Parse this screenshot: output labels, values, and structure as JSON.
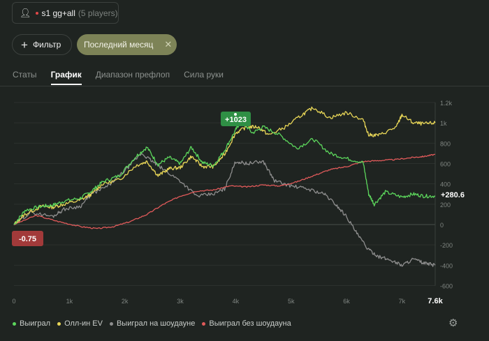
{
  "player_filter": {
    "name": "s1 gg+all",
    "count": "(5 players)",
    "icon": "person-settings-icon"
  },
  "toolbar": {
    "filter_label": "Фильтр",
    "period_label": "Последний месяц"
  },
  "tabs": [
    {
      "label": "Статы",
      "active": false
    },
    {
      "label": "График",
      "active": true
    },
    {
      "label": "Диапазон префлоп",
      "active": false
    },
    {
      "label": "Сила руки",
      "active": false
    }
  ],
  "chart_data": {
    "type": "line",
    "x_ticks": [
      "0",
      "1k",
      "2k",
      "3k",
      "4k",
      "5k",
      "6k",
      "7k"
    ],
    "x_end_label": "7.6k",
    "xlim": [
      0,
      7600
    ],
    "y_ticks": [
      "1.2k",
      "1k",
      "800",
      "600",
      "400",
      "200",
      "0",
      "-200",
      "-400",
      "-600"
    ],
    "ylim": [
      -600,
      1200
    ],
    "annotations": {
      "peak": "+1023",
      "start": "-0.75",
      "end": "+280.6"
    },
    "series": [
      {
        "name": "Выиграл",
        "color": "#5cd65c",
        "points": [
          [
            0,
            0
          ],
          [
            200,
            140
          ],
          [
            500,
            180
          ],
          [
            700,
            190
          ],
          [
            900,
            230
          ],
          [
            1200,
            260
          ],
          [
            1400,
            330
          ],
          [
            1600,
            420
          ],
          [
            1900,
            480
          ],
          [
            2200,
            670
          ],
          [
            2400,
            760
          ],
          [
            2600,
            590
          ],
          [
            2800,
            660
          ],
          [
            3000,
            600
          ],
          [
            3200,
            760
          ],
          [
            3400,
            610
          ],
          [
            3600,
            580
          ],
          [
            3800,
            730
          ],
          [
            4000,
            930
          ],
          [
            4100,
            1023
          ],
          [
            4300,
            900
          ],
          [
            4500,
            960
          ],
          [
            4800,
            880
          ],
          [
            5100,
            750
          ],
          [
            5400,
            840
          ],
          [
            5700,
            700
          ],
          [
            6000,
            650
          ],
          [
            6300,
            610
          ],
          [
            6400,
            300
          ],
          [
            6500,
            200
          ],
          [
            6700,
            320
          ],
          [
            7000,
            270
          ],
          [
            7200,
            300
          ],
          [
            7400,
            280
          ],
          [
            7600,
            280
          ]
        ]
      },
      {
        "name": "Олл-ин EV",
        "color": "#e8d657",
        "points": [
          [
            0,
            0
          ],
          [
            200,
            100
          ],
          [
            500,
            180
          ],
          [
            700,
            170
          ],
          [
            900,
            200
          ],
          [
            1200,
            240
          ],
          [
            1400,
            300
          ],
          [
            1600,
            400
          ],
          [
            1900,
            440
          ],
          [
            2200,
            580
          ],
          [
            2400,
            620
          ],
          [
            2600,
            480
          ],
          [
            2800,
            550
          ],
          [
            3000,
            560
          ],
          [
            3200,
            670
          ],
          [
            3400,
            570
          ],
          [
            3600,
            570
          ],
          [
            3800,
            690
          ],
          [
            4000,
            900
          ],
          [
            4200,
            960
          ],
          [
            4400,
            960
          ],
          [
            4600,
            880
          ],
          [
            4900,
            960
          ],
          [
            5200,
            1080
          ],
          [
            5400,
            1150
          ],
          [
            5700,
            1050
          ],
          [
            6000,
            1100
          ],
          [
            6300,
            1030
          ],
          [
            6400,
            880
          ],
          [
            6600,
            880
          ],
          [
            6900,
            960
          ],
          [
            7000,
            1080
          ],
          [
            7200,
            1000
          ],
          [
            7400,
            990
          ],
          [
            7600,
            1000
          ]
        ]
      },
      {
        "name": "Выиграл на шоудауне",
        "color": "#8e8e8e",
        "points": [
          [
            0,
            0
          ],
          [
            300,
            120
          ],
          [
            700,
            80
          ],
          [
            900,
            150
          ],
          [
            1200,
            180
          ],
          [
            1400,
            300
          ],
          [
            1700,
            380
          ],
          [
            2000,
            530
          ],
          [
            2300,
            700
          ],
          [
            2500,
            620
          ],
          [
            2700,
            540
          ],
          [
            3000,
            430
          ],
          [
            3300,
            280
          ],
          [
            3600,
            300
          ],
          [
            3800,
            350
          ],
          [
            4000,
            620
          ],
          [
            4200,
            600
          ],
          [
            4500,
            620
          ],
          [
            4700,
            430
          ],
          [
            5000,
            380
          ],
          [
            5300,
            350
          ],
          [
            5600,
            300
          ],
          [
            5800,
            200
          ],
          [
            6000,
            80
          ],
          [
            6200,
            -100
          ],
          [
            6400,
            -250
          ],
          [
            6600,
            -320
          ],
          [
            6800,
            -350
          ],
          [
            7000,
            -400
          ],
          [
            7200,
            -340
          ],
          [
            7400,
            -380
          ],
          [
            7600,
            -400
          ]
        ]
      },
      {
        "name": "Выиграл без шоудауна",
        "color": "#e05a5a",
        "points": [
          [
            0,
            0
          ],
          [
            400,
            90
          ],
          [
            800,
            30
          ],
          [
            1200,
            -20
          ],
          [
            1500,
            -40
          ],
          [
            1800,
            -20
          ],
          [
            2100,
            30
          ],
          [
            2400,
            100
          ],
          [
            2700,
            200
          ],
          [
            3000,
            280
          ],
          [
            3300,
            330
          ],
          [
            3600,
            340
          ],
          [
            3900,
            380
          ],
          [
            4200,
            370
          ],
          [
            4500,
            390
          ],
          [
            4800,
            380
          ],
          [
            5100,
            420
          ],
          [
            5400,
            480
          ],
          [
            5700,
            540
          ],
          [
            6000,
            570
          ],
          [
            6300,
            620
          ],
          [
            6600,
            630
          ],
          [
            6900,
            640
          ],
          [
            7200,
            660
          ],
          [
            7400,
            670
          ],
          [
            7600,
            690
          ]
        ]
      }
    ]
  },
  "settings_icon": "gear-icon"
}
